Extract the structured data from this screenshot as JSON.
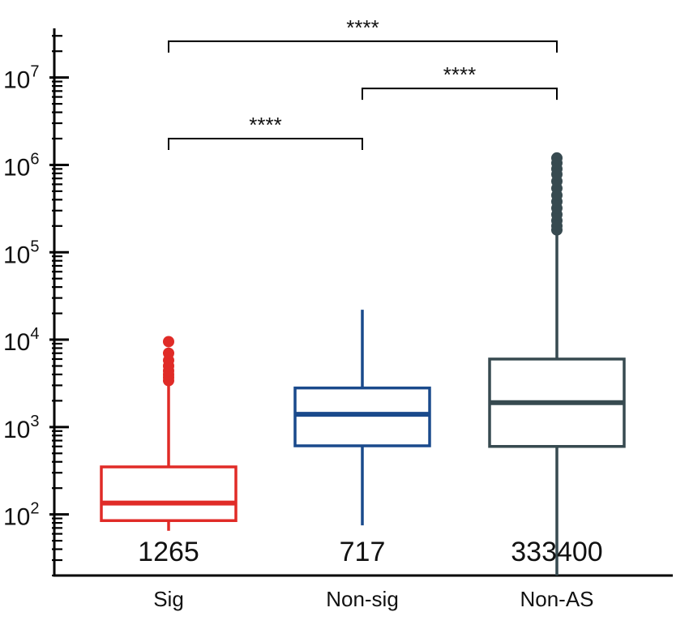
{
  "chart_data": {
    "type": "box",
    "title": "",
    "xlabel": "",
    "ylabel": "",
    "yscale": "log",
    "ylim": [
      20,
      35000000
    ],
    "yticks": [
      {
        "value": 100,
        "base": "10",
        "exp": "2"
      },
      {
        "value": 1000,
        "base": "10",
        "exp": "3"
      },
      {
        "value": 10000,
        "base": "10",
        "exp": "4"
      },
      {
        "value": 100000,
        "base": "10",
        "exp": "5"
      },
      {
        "value": 1000000,
        "base": "10",
        "exp": "6"
      },
      {
        "value": 10000000,
        "base": "10",
        "exp": "7"
      }
    ],
    "grid": false,
    "categories": [
      "Sig",
      "Non-sig",
      "Non-AS"
    ],
    "boxes": [
      {
        "category": "Sig",
        "color": "#e02b27",
        "count_label": "1265",
        "whisker_low": 65,
        "q1": 85,
        "median": 135,
        "q3": 350,
        "whisker_high": 3200,
        "outliers": [
          3400,
          3700,
          4000,
          4400,
          5000,
          5800,
          7000,
          9500
        ]
      },
      {
        "category": "Non-sig",
        "color": "#1a4a8c",
        "count_label": "717",
        "whisker_low": 75,
        "q1": 610,
        "median": 1400,
        "q3": 2800,
        "whisker_high": 22000,
        "outliers": []
      },
      {
        "category": "Non-AS",
        "color": "#374a50",
        "count_label": "333400",
        "whisker_low": 20,
        "q1": 600,
        "median": 1900,
        "q3": 6000,
        "whisker_high": 170000,
        "outliers": [
          180000,
          200000,
          230000,
          270000,
          320000,
          380000,
          450000,
          540000,
          650000,
          780000,
          900000,
          1050000,
          1200000
        ]
      }
    ],
    "comparisons": [
      {
        "from": "Sig",
        "to": "Non-sig",
        "y": 2000000,
        "label": "****"
      },
      {
        "from": "Non-sig",
        "to": "Non-AS",
        "y": 7500000,
        "label": "****"
      },
      {
        "from": "Sig",
        "to": "Non-AS",
        "y": 26000000,
        "label": "****"
      }
    ]
  }
}
